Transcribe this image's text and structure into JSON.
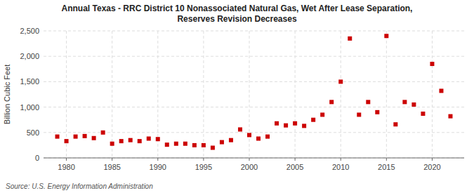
{
  "chart_data": {
    "type": "scatter",
    "title": "Annual Texas - RRC District 10 Nonassociated Natural Gas, Wet After Lease Separation,\nReserves Revision Decreases",
    "ylabel": "Billion Cubic Feet",
    "source": "Source: U.S. Energy Information Administration",
    "color": "#cc0000",
    "marker": "square",
    "grid": true,
    "xlim": [
      1977.5,
      2023.5
    ],
    "ylim": [
      0,
      2500
    ],
    "xticks": [
      1980,
      1985,
      1990,
      1995,
      2000,
      2005,
      2010,
      2015,
      2020
    ],
    "yticks": [
      0,
      500,
      {
        "value": 1000,
        "label": "1,000"
      },
      {
        "value": 1500,
        "label": "1,500"
      },
      {
        "value": 2000,
        "label": "2,000"
      },
      {
        "value": 2500,
        "label": "2,500"
      }
    ],
    "x": [
      1979,
      1980,
      1981,
      1982,
      1983,
      1984,
      1985,
      1986,
      1987,
      1988,
      1989,
      1990,
      1991,
      1992,
      1993,
      1994,
      1995,
      1996,
      1997,
      1998,
      1999,
      2000,
      2001,
      2002,
      2003,
      2004,
      2005,
      2006,
      2007,
      2008,
      2009,
      2010,
      2011,
      2012,
      2013,
      2014,
      2015,
      2016,
      2017,
      2018,
      2019,
      2020,
      2021,
      2022
    ],
    "values": [
      420,
      330,
      420,
      430,
      390,
      500,
      280,
      330,
      350,
      330,
      380,
      370,
      260,
      280,
      280,
      250,
      250,
      200,
      310,
      350,
      560,
      450,
      380,
      420,
      680,
      640,
      680,
      630,
      750,
      850,
      1100,
      1500,
      2350,
      850,
      1100,
      900,
      2400,
      660,
      1100,
      1050,
      870,
      1850,
      1320,
      820
    ]
  }
}
